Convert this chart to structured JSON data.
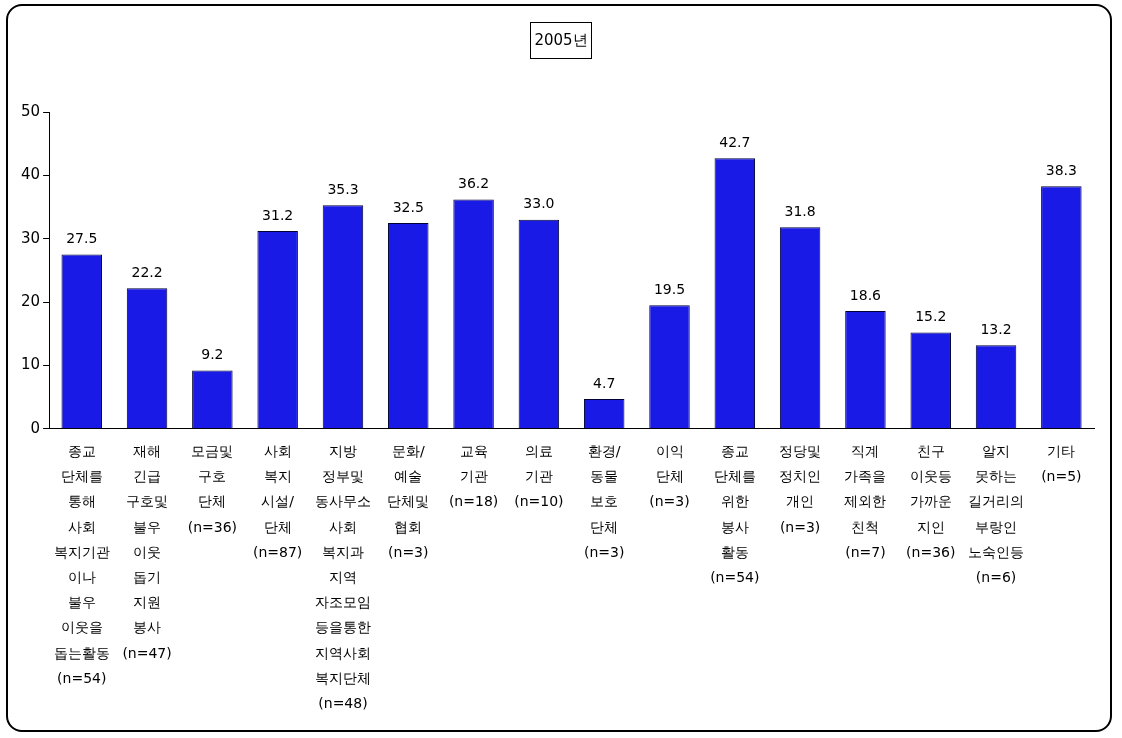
{
  "chart_data": {
    "type": "bar",
    "title": "2005년",
    "categories": [
      "종교\n단체를\n통해\n사회\n복지기관\n이나\n불우\n이웃을\n돕는활동\n(n=54)",
      "재해\n긴급\n구호및\n불우\n이웃\n돕기\n지원\n봉사\n(n=47)",
      "모금및\n구호\n단체\n(n=36)",
      "사회\n복지\n시설/\n단체\n(n=87)",
      "지방\n정부및\n동사무소\n사회\n복지과\n지역\n자조모임\n등을통한\n지역사회\n복지단체\n(n=48)",
      "문화/\n예술\n단체및\n협회\n(n=3)",
      "교육\n기관\n(n=18)",
      "의료\n기관\n(n=10)",
      "환경/\n동물\n보호\n단체\n(n=3)",
      "이익\n단체\n(n=3)",
      "종교\n단체를\n위한\n봉사\n활동\n(n=54)",
      "정당및\n정치인\n개인\n(n=3)",
      "직계\n가족을\n제외한\n친척\n(n=7)",
      "친구\n이웃등\n가까운\n지인\n(n=36)",
      "알지\n못하는\n길거리의\n부랑인\n노숙인등\n(n=6)",
      "기타\n(n=5)"
    ],
    "values": [
      27.5,
      22.2,
      9.2,
      31.2,
      35.3,
      32.5,
      36.2,
      33.0,
      4.7,
      19.5,
      42.7,
      31.8,
      18.6,
      15.2,
      13.2,
      38.3
    ],
    "value_labels": [
      "27.5",
      "22.2",
      "9.2",
      "31.2",
      "35.3",
      "32.5",
      "36.2",
      "33.0",
      "4.7",
      "19.5",
      "42.7",
      "31.8",
      "18.6",
      "15.2",
      "13.2",
      "38.3"
    ],
    "color": "#1a1ae6",
    "ylim": [
      0,
      50
    ],
    "yticks": [
      0,
      10,
      20,
      30,
      40,
      50
    ]
  }
}
